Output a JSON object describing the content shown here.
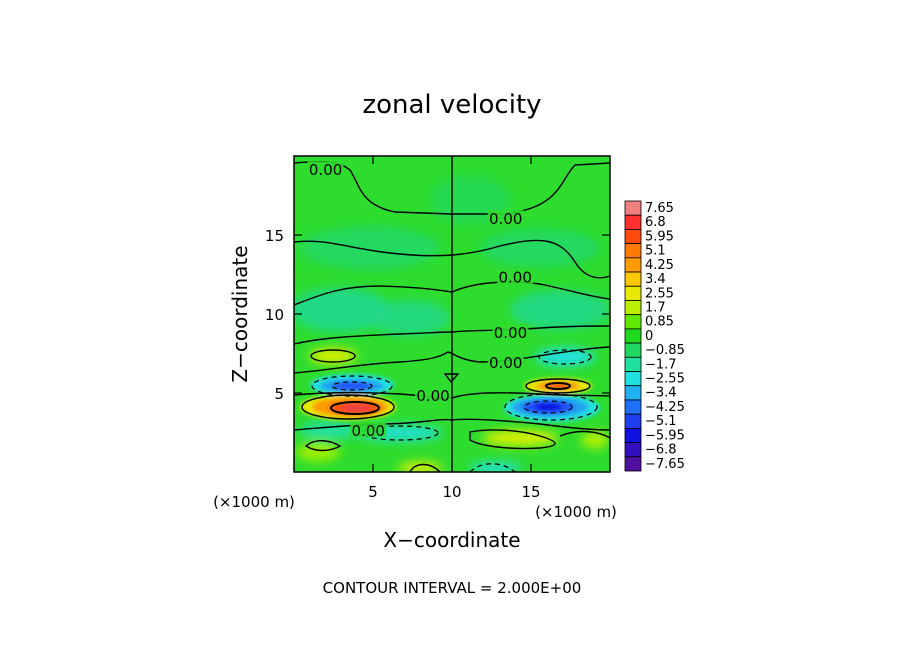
{
  "chart_data": {
    "type": "heatmap",
    "title": "zonal velocity",
    "xlabel": "X−coordinate",
    "ylabel": "Z−coordinate",
    "x_unit": "(×1000 m)",
    "x_unit_right": "(×1000 m)",
    "footer": "CONTOUR INTERVAL = 2.000E+00",
    "xlim": [
      0,
      20
    ],
    "ylim": [
      0,
      20
    ],
    "x_ticks": [
      {
        "value": 5,
        "label": "5"
      },
      {
        "value": 10,
        "label": "10"
      },
      {
        "value": 15,
        "label": "15"
      }
    ],
    "y_ticks": [
      {
        "value": 5,
        "label": "5"
      },
      {
        "value": 10,
        "label": "10"
      },
      {
        "value": 15,
        "label": "15"
      }
    ],
    "colorbar": {
      "levels": [
        "7.65",
        "6.8",
        "5.95",
        "5.1",
        "4.25",
        "3.4",
        "2.55",
        "1.7",
        "0.85",
        "0",
        "−0.85",
        "−1.7",
        "−2.55",
        "−3.4",
        "−4.25",
        "−5.1",
        "−5.95",
        "−6.8",
        "−7.65"
      ],
      "colors": [
        "#f08080",
        "#ff3030",
        "#ff4a10",
        "#ff7a00",
        "#ff9a00",
        "#ffc800",
        "#e8e800",
        "#b8f000",
        "#60e800",
        "#20d820",
        "#20d860",
        "#20e0a0",
        "#20e0e0",
        "#20b0f0",
        "#2070ff",
        "#2040f0",
        "#1010e0",
        "#3010c0",
        "#5010a0"
      ]
    },
    "contour_labels": [
      {
        "text": "0.00",
        "x": 2.0,
        "z": 19.1
      },
      {
        "text": "0.00",
        "x": 13.4,
        "z": 16.0
      },
      {
        "text": "0.00",
        "x": 14.0,
        "z": 12.3
      },
      {
        "text": "0.00",
        "x": 13.7,
        "z": 8.8
      },
      {
        "text": "0.00",
        "x": 13.4,
        "z": 6.9
      },
      {
        "text": "0.00",
        "x": 8.8,
        "z": 4.8
      },
      {
        "text": "0.00",
        "x": 4.7,
        "z": 2.6
      }
    ],
    "features": [
      {
        "sign": "positive",
        "peak": 7.65,
        "x": 3.6,
        "z": 4.1
      },
      {
        "sign": "positive",
        "peak": 5.1,
        "x": 16.8,
        "z": 5.3
      },
      {
        "sign": "negative",
        "peak": -5.1,
        "x": 4.5,
        "z": 5.4
      },
      {
        "sign": "negative",
        "peak": -5.95,
        "x": 16.2,
        "z": 4.0
      }
    ]
  }
}
